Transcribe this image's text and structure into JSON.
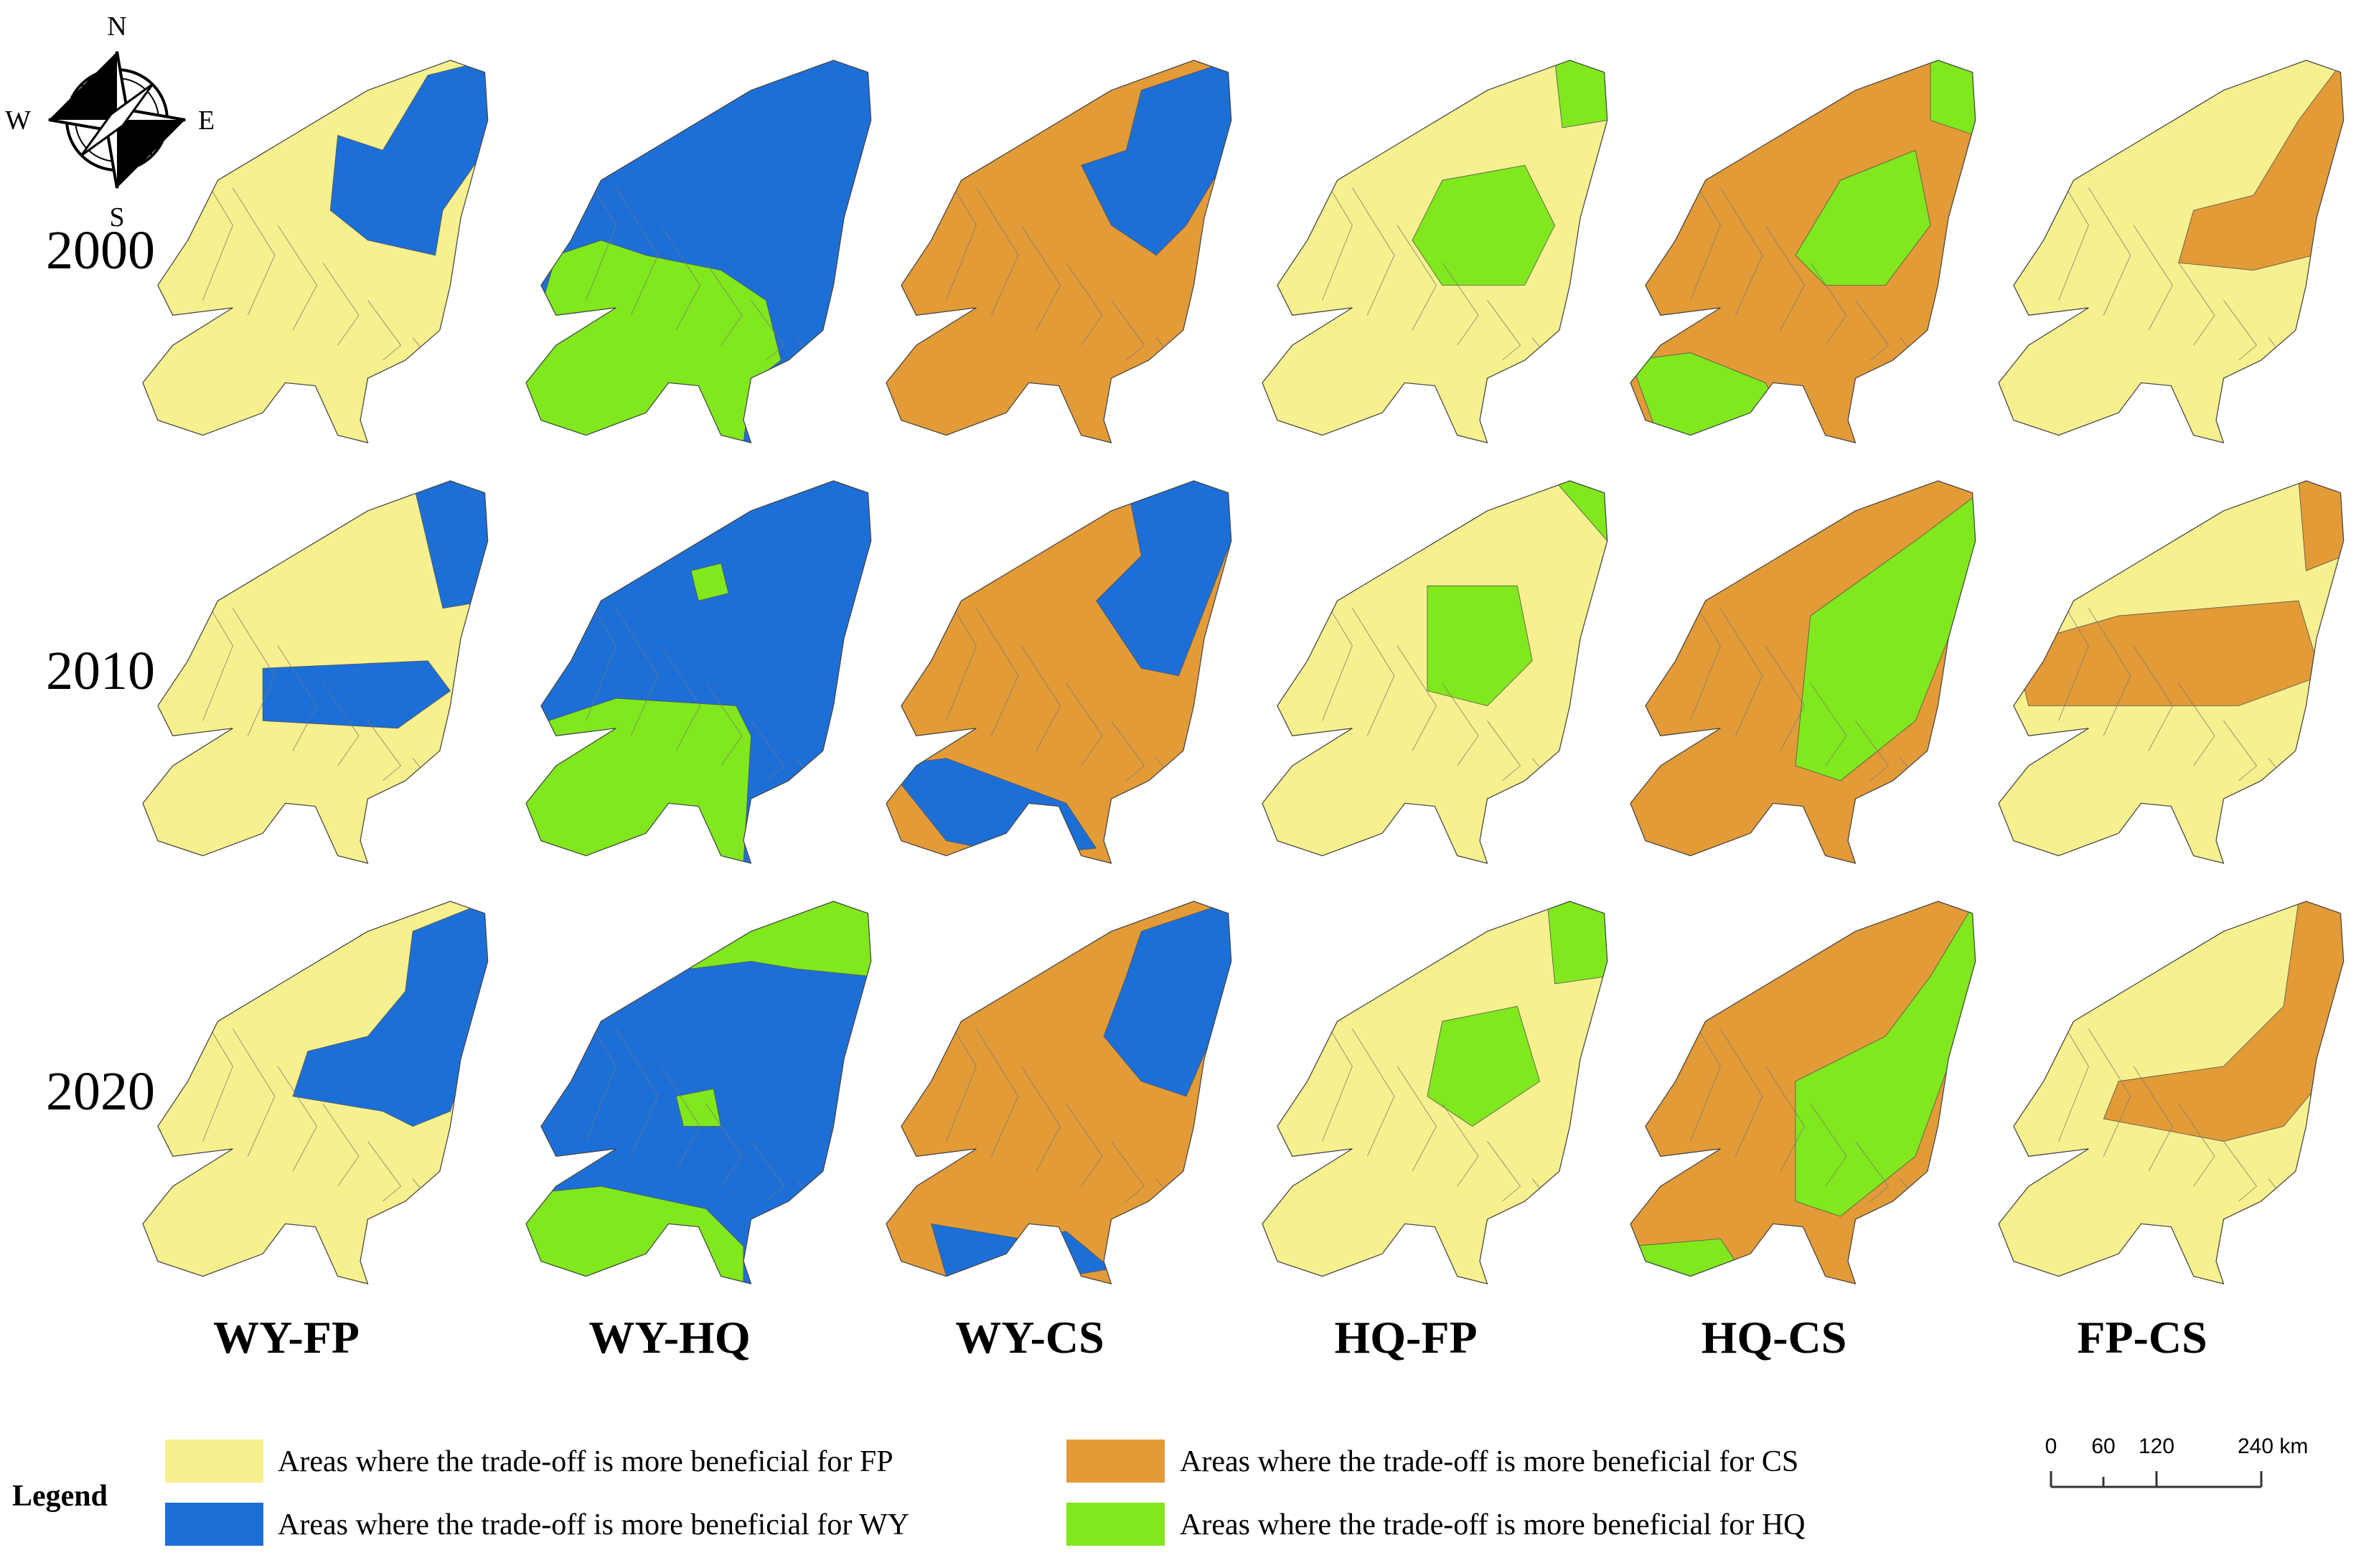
{
  "compass": {
    "north": "N",
    "east": "E",
    "south": "S",
    "west": "W"
  },
  "rows": [
    "2000",
    "2010",
    "2020"
  ],
  "columns": [
    "WY-FP",
    "WY-HQ",
    "WY-CS",
    "HQ-FP",
    "HQ-CS",
    "FP-CS"
  ],
  "legend": {
    "title": "Legend",
    "items": [
      {
        "label": "Areas where the trade-off is more beneficial for FP",
        "color": "#f6f08e"
      },
      {
        "label": "Areas where the trade-off is more beneficial for WY",
        "color": "#1d6fd8"
      },
      {
        "label": "Areas where the trade-off is more beneficial for CS",
        "color": "#e39b37"
      },
      {
        "label": "Areas where the trade-off is more beneficial for HQ",
        "color": "#80e81c"
      }
    ]
  },
  "scale_bar": {
    "labels": [
      "0",
      "60",
      "120",
      "240 km"
    ]
  }
}
